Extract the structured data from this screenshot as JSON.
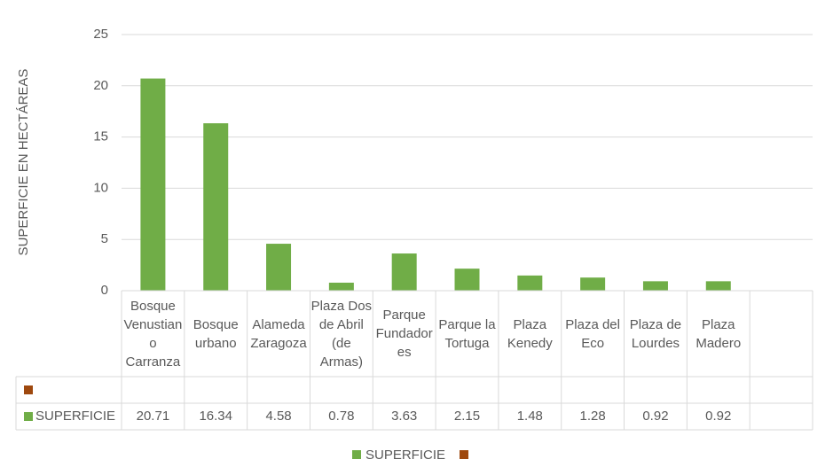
{
  "chart_data": {
    "type": "bar",
    "y_label": "SUPERFICIE EN HECTÁREAS",
    "categories": [
      "Bosque Venustiano Carranza",
      "Bosque urbano",
      "Alameda Zaragoza",
      "Plaza Dos de Abril (de Armas)",
      "Parque Fundadores",
      "Parque la Tortuga",
      "Plaza Kenedy",
      "Plaza del Eco",
      "Plaza de Lourdes",
      "Plaza Madero",
      null
    ],
    "series": [
      {
        "color": "#9e480e",
        "values": [
          null,
          null,
          null,
          null,
          null,
          null,
          null,
          null,
          null,
          null,
          null
        ]
      },
      {
        "name": "SUPERFICIE",
        "color": "#70ad47",
        "values": [
          20.71,
          16.34,
          4.58,
          0.78,
          3.63,
          2.15,
          1.48,
          1.28,
          0.92,
          0.92,
          null
        ]
      }
    ],
    "ylim": [
      0,
      25
    ],
    "yticks": [
      0,
      5,
      10,
      15,
      20,
      25
    ],
    "grid": true,
    "data_table": true,
    "legend": "bottom"
  }
}
